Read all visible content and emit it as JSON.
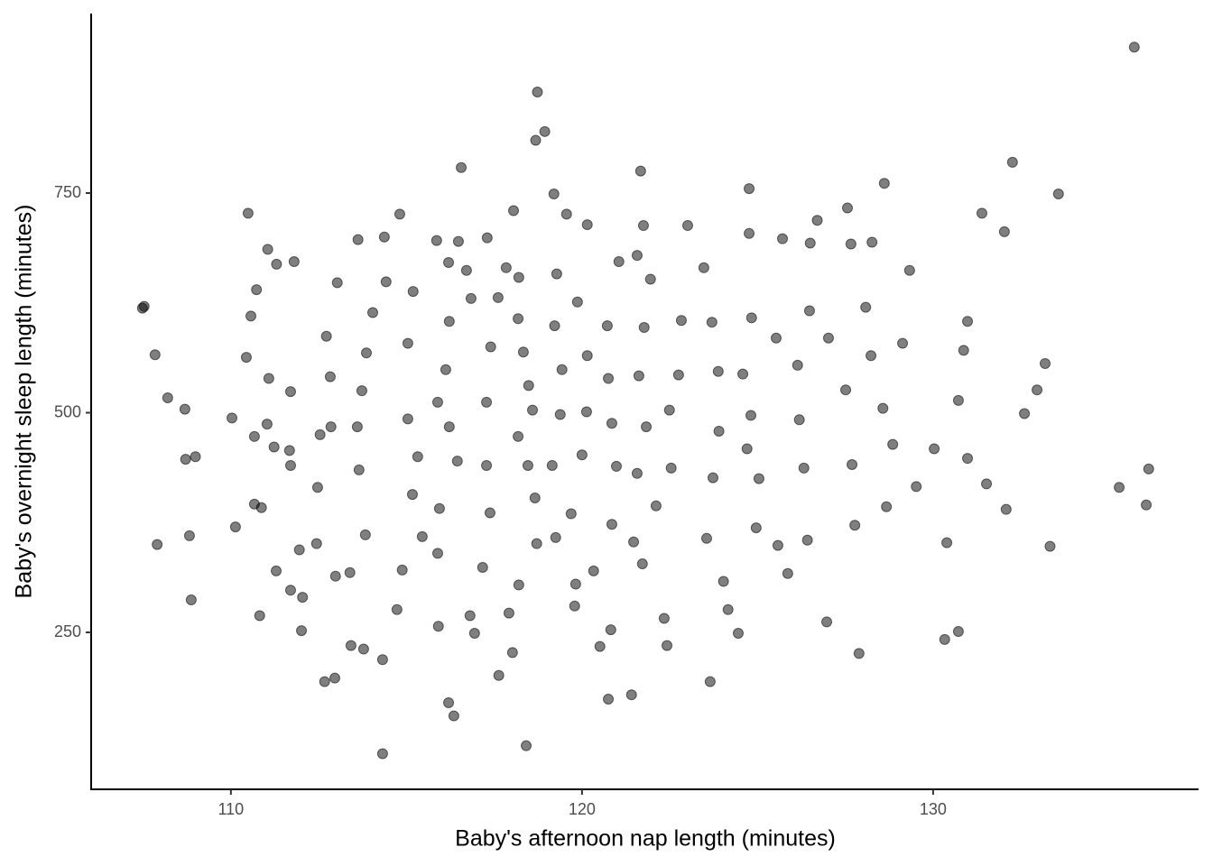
{
  "chart_data": {
    "type": "scatter",
    "x_label": "Baby's afternoon nap length (minutes)",
    "y_label": "Baby's overnight sleep length (minutes)",
    "color": "#000000",
    "xlim": [
      106.02,
      137.56
    ],
    "xticks": [
      110,
      120,
      130
    ],
    "ylim": [
      71.4,
      954.3
    ],
    "yticks": [
      250,
      500,
      750
    ],
    "x": [
      107.48,
      107.53,
      107.84,
      108.2,
      108.69,
      107.9,
      108.71,
      108.99,
      108.82,
      108.87,
      110.03,
      110.13,
      110.49,
      135.73,
      118.73,
      118.94,
      118.68,
      116.56,
      119.2,
      121.67,
      132.26,
      133.57,
      131.39,
      132.03,
      133.33,
      135.3,
      136.07,
      136.14,
      133.19,
      132.96,
      132.6,
      130.98,
      130.87,
      130.98,
      130.72,
      130.33,
      130.39,
      131.52,
      132.08,
      128.61,
      129.33,
      118.41,
      114.32,
      116.35,
      116.2,
      120.75,
      121.41,
      117.63,
      112.67,
      112.96,
      114.32,
      123.65,
      127.89,
      126.97,
      124.96,
      111.05,
      111.3,
      111.8,
      110.73,
      110.57,
      110.44,
      111.08,
      111.7,
      110.67,
      111.03,
      111.23,
      111.67,
      111.7,
      110.67,
      110.87,
      110.82,
      111.29,
      111.7,
      112.04,
      112.01,
      111.95,
      112.44,
      112.47,
      112.54,
      112.85,
      112.83,
      112.72,
      113.03,
      113.62,
      114.37,
      114.81,
      114.42,
      114.04,
      113.86,
      113.73,
      113.6,
      113.65,
      113.83,
      113.39,
      112.98,
      113.42,
      113.78,
      114.73,
      114.88,
      115.45,
      115.17,
      115.32,
      115.04,
      115.04,
      115.19,
      115.86,
      116.2,
      116.48,
      116.71,
      116.84,
      116.22,
      116.12,
      115.89,
      116.22,
      116.45,
      115.94,
      115.89,
      115.91,
      116.81,
      116.94,
      117.17,
      117.38,
      117.28,
      117.28,
      117.4,
      117.61,
      117.3,
      118.05,
      117.84,
      118.2,
      118.18,
      118.33,
      118.48,
      118.59,
      118.18,
      118.46,
      118.66,
      118.71,
      118.2,
      117.92,
      118.02,
      119.25,
      119.15,
      119.38,
      119.43,
      119.22,
      119.28,
      119.56,
      120.15,
      119.87,
      120.15,
      120.13,
      120.0,
      119.69,
      119.82,
      120.33,
      119.79,
      120.51,
      120.82,
      120.85,
      120.98,
      120.85,
      120.75,
      120.72,
      121.05,
      121.57,
      121.75,
      121.95,
      121.77,
      121.62,
      121.83,
      121.57,
      121.47,
      121.72,
      122.34,
      122.42,
      122.11,
      122.54,
      122.49,
      122.75,
      122.83,
      123.01,
      123.47,
      123.7,
      123.88,
      123.9,
      123.73,
      123.55,
      124.16,
      124.03,
      124.45,
      124.76,
      124.76,
      124.83,
      124.58,
      124.81,
      124.7,
      125.04,
      125.58,
      125.86,
      125.71,
      125.53,
      126.14,
      126.19,
      126.32,
      126.42,
      126.7,
      126.5,
      126.48,
      127.02,
      127.51,
      127.69,
      127.56,
      127.66,
      127.77,
      128.23,
      128.57,
      128.67,
      128.85,
      129.13,
      129.52,
      130.03,
      130.72,
      128.26,
      128.08
    ],
    "values": [
      619,
      621,
      566,
      517,
      504,
      350,
      447,
      450,
      360,
      287,
      494,
      370,
      727,
      916,
      865,
      820,
      810,
      779,
      749,
      775,
      785,
      749,
      727,
      706,
      348,
      415,
      395,
      436,
      556,
      526,
      499,
      604,
      571,
      448,
      251,
      242,
      352,
      419,
      390,
      761,
      662,
      121,
      112,
      155,
      170,
      174,
      179,
      201,
      194,
      198,
      219,
      194,
      226,
      262,
      369,
      686,
      669,
      672,
      640,
      610,
      563,
      539,
      524,
      473,
      487,
      461,
      457,
      440,
      396,
      392,
      269,
      320,
      298,
      290,
      252,
      344,
      351,
      415,
      475,
      484,
      541,
      587,
      648,
      697,
      700,
      726,
      649,
      614,
      568,
      525,
      484,
      435,
      361,
      318,
      314,
      235,
      231,
      276,
      321,
      359,
      407,
      450,
      493,
      579,
      638,
      696,
      671,
      695,
      662,
      630,
      604,
      549,
      512,
      484,
      445,
      391,
      340,
      257,
      269,
      249,
      324,
      386,
      440,
      512,
      575,
      631,
      699,
      730,
      665,
      654,
      607,
      569,
      531,
      503,
      473,
      440,
      403,
      351,
      304,
      272,
      227,
      358,
      440,
      498,
      549,
      599,
      658,
      726,
      714,
      626,
      565,
      501,
      452,
      385,
      305,
      320,
      280,
      234,
      253,
      373,
      439,
      488,
      539,
      599,
      672,
      679,
      713,
      652,
      597,
      542,
      484,
      431,
      353,
      328,
      266,
      235,
      394,
      437,
      503,
      543,
      605,
      713,
      665,
      603,
      547,
      479,
      426,
      357,
      276,
      308,
      249,
      704,
      755,
      608,
      544,
      497,
      459,
      425,
      349,
      317,
      698,
      585,
      554,
      492,
      437,
      355,
      719,
      693,
      616,
      585,
      526,
      441,
      733,
      692,
      372,
      565,
      505,
      393,
      464,
      579,
      416,
      459,
      514,
      694,
      620
    ]
  }
}
